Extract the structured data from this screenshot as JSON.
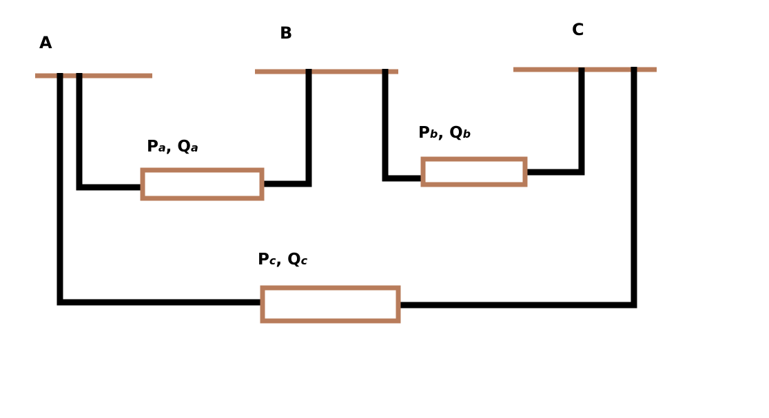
{
  "diagram": {
    "buses": [
      {
        "id": "A",
        "label": "A"
      },
      {
        "id": "B",
        "label": "B"
      },
      {
        "id": "C",
        "label": "C"
      }
    ],
    "lines": [
      {
        "id": "a",
        "from": "A",
        "to": "B",
        "label_p": "P",
        "sub_p": "a",
        "label_sep": ", ",
        "label_q": "Q",
        "sub_q": "a"
      },
      {
        "id": "b",
        "from": "B",
        "to": "C",
        "label_p": "P",
        "sub_p": "b",
        "label_sep": ", ",
        "label_q": "Q",
        "sub_q": "b"
      },
      {
        "id": "c",
        "from": "A",
        "to": "C",
        "label_p": "P",
        "sub_p": "c",
        "label_sep": ", ",
        "label_q": "Q",
        "sub_q": "c"
      }
    ],
    "colors": {
      "bus": "#b87c5b",
      "impedance_border": "#b87c5b",
      "wire": "#000000",
      "background": "#ffffff"
    }
  }
}
